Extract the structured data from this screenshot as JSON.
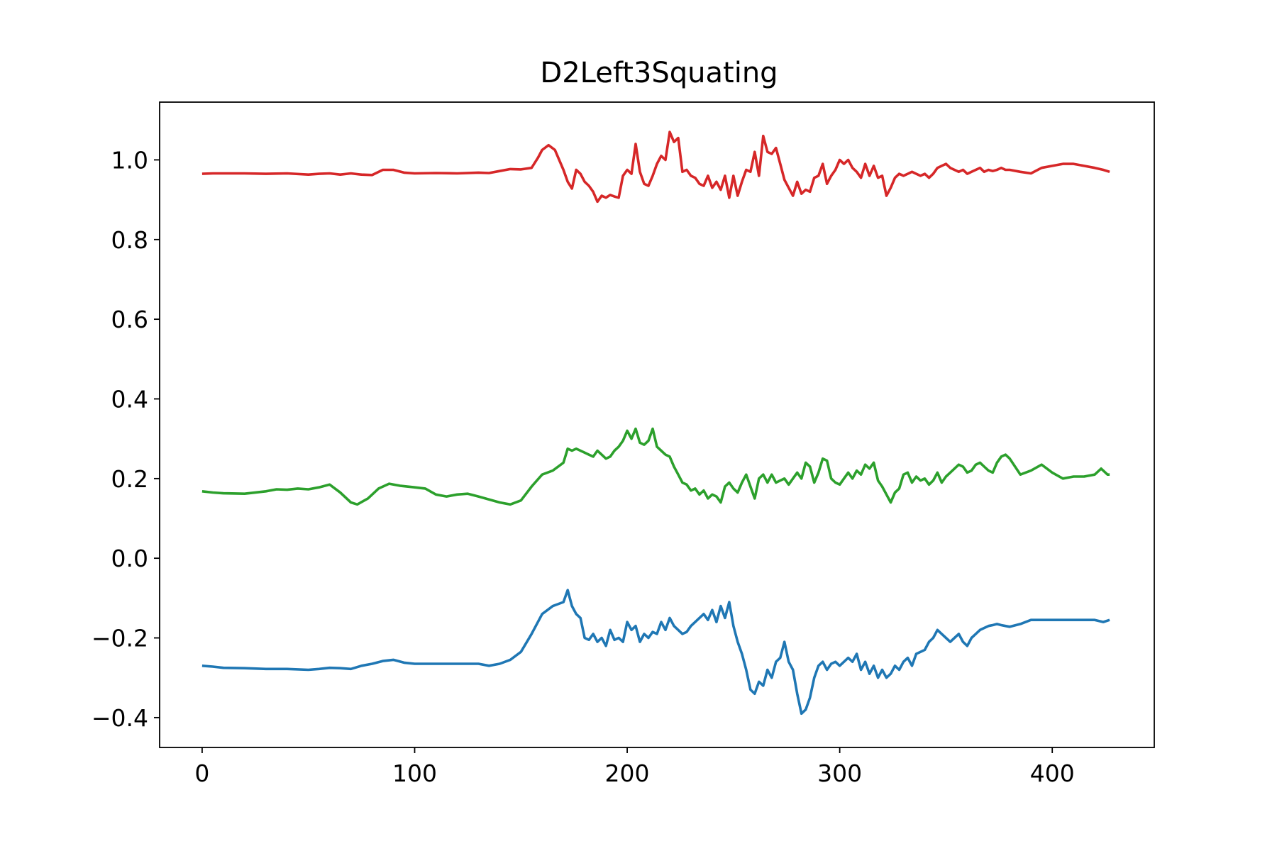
{
  "chart_data": {
    "type": "line",
    "title": "D2Left3Squating",
    "xlabel": "",
    "ylabel": "",
    "xlim": [
      -20,
      448
    ],
    "ylim": [
      -0.475,
      1.145
    ],
    "xticks": [
      0,
      100,
      200,
      300,
      400
    ],
    "xtick_labels": [
      "0",
      "100",
      "200",
      "300",
      "400"
    ],
    "yticks": [
      -0.4,
      -0.2,
      0.0,
      0.2,
      0.4,
      0.6,
      0.8,
      1.0
    ],
    "ytick_labels": [
      "−0.4",
      "−0.2",
      "0.0",
      "0.2",
      "0.4",
      "0.6",
      "0.8",
      "1.0"
    ],
    "grid": false,
    "legend": "none",
    "series": [
      {
        "color": "#d62728",
        "x": [
          0,
          5,
          10,
          20,
          30,
          40,
          50,
          55,
          60,
          65,
          70,
          75,
          80,
          85,
          90,
          95,
          100,
          110,
          120,
          130,
          135,
          140,
          145,
          150,
          155,
          158,
          160,
          163,
          166,
          170,
          172,
          174,
          176,
          178,
          180,
          182,
          184,
          186,
          188,
          190,
          192,
          194,
          196,
          198,
          200,
          202,
          204,
          206,
          208,
          210,
          212,
          214,
          216,
          218,
          220,
          222,
          224,
          226,
          228,
          230,
          232,
          234,
          236,
          238,
          240,
          242,
          244,
          246,
          248,
          250,
          252,
          254,
          256,
          258,
          260,
          262,
          264,
          266,
          268,
          270,
          272,
          274,
          276,
          278,
          280,
          282,
          284,
          286,
          288,
          290,
          292,
          294,
          296,
          298,
          300,
          302,
          304,
          306,
          308,
          310,
          312,
          314,
          316,
          318,
          320,
          322,
          324,
          326,
          328,
          330,
          332,
          334,
          336,
          338,
          340,
          342,
          344,
          346,
          348,
          350,
          352,
          354,
          356,
          358,
          360,
          362,
          364,
          366,
          368,
          370,
          372,
          374,
          376,
          378,
          380,
          385,
          390,
          395,
          400,
          405,
          410,
          415,
          420,
          424,
          427
        ],
        "y": [
          0.965,
          0.966,
          0.966,
          0.966,
          0.965,
          0.966,
          0.963,
          0.965,
          0.966,
          0.963,
          0.966,
          0.963,
          0.962,
          0.975,
          0.975,
          0.968,
          0.966,
          0.967,
          0.966,
          0.968,
          0.967,
          0.972,
          0.977,
          0.976,
          0.98,
          1.005,
          1.025,
          1.037,
          1.025,
          0.975,
          0.945,
          0.928,
          0.975,
          0.965,
          0.945,
          0.935,
          0.92,
          0.895,
          0.91,
          0.905,
          0.912,
          0.908,
          0.905,
          0.96,
          0.975,
          0.965,
          1.04,
          0.97,
          0.94,
          0.935,
          0.96,
          0.99,
          1.01,
          1.0,
          1.07,
          1.045,
          1.055,
          0.97,
          0.975,
          0.96,
          0.955,
          0.94,
          0.935,
          0.96,
          0.93,
          0.945,
          0.925,
          0.96,
          0.905,
          0.96,
          0.91,
          0.945,
          0.975,
          0.97,
          1.02,
          0.96,
          1.06,
          1.02,
          1.015,
          1.03,
          0.99,
          0.95,
          0.93,
          0.91,
          0.945,
          0.915,
          0.925,
          0.92,
          0.955,
          0.96,
          0.99,
          0.94,
          0.96,
          0.975,
          1.0,
          0.99,
          1.0,
          0.98,
          0.97,
          0.955,
          0.99,
          0.96,
          0.985,
          0.955,
          0.96,
          0.91,
          0.93,
          0.955,
          0.965,
          0.96,
          0.965,
          0.97,
          0.965,
          0.96,
          0.965,
          0.955,
          0.965,
          0.98,
          0.985,
          0.99,
          0.98,
          0.975,
          0.97,
          0.975,
          0.965,
          0.97,
          0.975,
          0.98,
          0.97,
          0.975,
          0.972,
          0.975,
          0.98,
          0.975,
          0.975,
          0.97,
          0.966,
          0.98,
          0.985,
          0.99,
          0.99,
          0.985,
          0.98,
          0.975,
          0.97
        ]
      },
      {
        "color": "#2ca02c",
        "x": [
          0,
          5,
          10,
          20,
          30,
          35,
          40,
          45,
          50,
          55,
          60,
          65,
          70,
          73,
          78,
          83,
          88,
          93,
          100,
          105,
          110,
          115,
          120,
          125,
          130,
          140,
          145,
          150,
          155,
          160,
          165,
          170,
          172,
          174,
          176,
          178,
          180,
          182,
          184,
          186,
          188,
          190,
          192,
          194,
          196,
          198,
          200,
          202,
          204,
          206,
          208,
          210,
          212,
          214,
          216,
          218,
          220,
          222,
          224,
          226,
          228,
          230,
          232,
          234,
          236,
          238,
          240,
          242,
          244,
          246,
          248,
          250,
          252,
          254,
          256,
          258,
          260,
          262,
          264,
          266,
          268,
          270,
          272,
          274,
          276,
          278,
          280,
          282,
          284,
          286,
          288,
          290,
          292,
          294,
          296,
          298,
          300,
          302,
          304,
          306,
          308,
          310,
          312,
          314,
          316,
          318,
          320,
          322,
          324,
          326,
          328,
          330,
          332,
          334,
          336,
          338,
          340,
          342,
          344,
          346,
          348,
          350,
          352,
          354,
          356,
          358,
          360,
          362,
          364,
          366,
          368,
          370,
          372,
          374,
          376,
          378,
          380,
          385,
          390,
          395,
          400,
          405,
          410,
          415,
          420,
          423,
          426,
          427
        ],
        "y": [
          0.168,
          0.165,
          0.163,
          0.162,
          0.168,
          0.173,
          0.172,
          0.175,
          0.173,
          0.178,
          0.185,
          0.165,
          0.14,
          0.135,
          0.15,
          0.175,
          0.187,
          0.182,
          0.178,
          0.175,
          0.16,
          0.155,
          0.16,
          0.162,
          0.155,
          0.14,
          0.135,
          0.145,
          0.18,
          0.21,
          0.22,
          0.24,
          0.275,
          0.27,
          0.275,
          0.27,
          0.265,
          0.26,
          0.255,
          0.27,
          0.26,
          0.25,
          0.255,
          0.27,
          0.28,
          0.295,
          0.32,
          0.3,
          0.325,
          0.29,
          0.285,
          0.295,
          0.325,
          0.28,
          0.27,
          0.26,
          0.255,
          0.23,
          0.21,
          0.19,
          0.185,
          0.17,
          0.175,
          0.16,
          0.17,
          0.15,
          0.16,
          0.155,
          0.14,
          0.18,
          0.19,
          0.175,
          0.165,
          0.19,
          0.21,
          0.18,
          0.15,
          0.2,
          0.21,
          0.19,
          0.21,
          0.19,
          0.195,
          0.2,
          0.185,
          0.2,
          0.215,
          0.2,
          0.24,
          0.23,
          0.19,
          0.215,
          0.25,
          0.245,
          0.2,
          0.19,
          0.185,
          0.2,
          0.215,
          0.2,
          0.22,
          0.21,
          0.235,
          0.225,
          0.24,
          0.195,
          0.18,
          0.16,
          0.14,
          0.165,
          0.175,
          0.21,
          0.215,
          0.19,
          0.205,
          0.195,
          0.2,
          0.185,
          0.195,
          0.215,
          0.19,
          0.205,
          0.215,
          0.225,
          0.235,
          0.23,
          0.215,
          0.22,
          0.235,
          0.24,
          0.23,
          0.22,
          0.215,
          0.24,
          0.255,
          0.26,
          0.25,
          0.21,
          0.22,
          0.235,
          0.215,
          0.2,
          0.205,
          0.205,
          0.21,
          0.225,
          0.21,
          0.21
        ]
      },
      {
        "color": "#1f77b4",
        "x": [
          0,
          5,
          10,
          20,
          30,
          40,
          50,
          55,
          60,
          65,
          70,
          75,
          80,
          85,
          90,
          95,
          100,
          110,
          120,
          130,
          135,
          140,
          145,
          150,
          155,
          160,
          165,
          170,
          172,
          174,
          176,
          178,
          180,
          182,
          184,
          186,
          188,
          190,
          192,
          194,
          196,
          198,
          200,
          202,
          204,
          206,
          208,
          210,
          212,
          214,
          216,
          218,
          220,
          222,
          224,
          226,
          228,
          230,
          232,
          234,
          236,
          238,
          240,
          242,
          244,
          246,
          248,
          250,
          252,
          254,
          256,
          258,
          260,
          262,
          264,
          266,
          268,
          270,
          272,
          274,
          276,
          278,
          280,
          282,
          284,
          286,
          288,
          290,
          292,
          294,
          296,
          298,
          300,
          302,
          304,
          306,
          308,
          310,
          312,
          314,
          316,
          318,
          320,
          322,
          324,
          326,
          328,
          330,
          332,
          334,
          336,
          338,
          340,
          342,
          344,
          346,
          348,
          350,
          352,
          354,
          356,
          358,
          360,
          362,
          364,
          366,
          368,
          370,
          372,
          374,
          376,
          378,
          380,
          385,
          390,
          395,
          400,
          405,
          410,
          415,
          420,
          424,
          427
        ],
        "y": [
          -0.27,
          -0.272,
          -0.275,
          -0.276,
          -0.278,
          -0.278,
          -0.28,
          -0.278,
          -0.275,
          -0.276,
          -0.278,
          -0.27,
          -0.265,
          -0.258,
          -0.255,
          -0.262,
          -0.265,
          -0.265,
          -0.265,
          -0.265,
          -0.27,
          -0.265,
          -0.255,
          -0.235,
          -0.19,
          -0.14,
          -0.12,
          -0.11,
          -0.08,
          -0.12,
          -0.14,
          -0.15,
          -0.2,
          -0.205,
          -0.19,
          -0.21,
          -0.2,
          -0.22,
          -0.18,
          -0.205,
          -0.2,
          -0.21,
          -0.16,
          -0.18,
          -0.17,
          -0.21,
          -0.19,
          -0.2,
          -0.185,
          -0.19,
          -0.16,
          -0.18,
          -0.15,
          -0.17,
          -0.18,
          -0.19,
          -0.185,
          -0.17,
          -0.16,
          -0.15,
          -0.14,
          -0.155,
          -0.13,
          -0.16,
          -0.12,
          -0.15,
          -0.11,
          -0.17,
          -0.21,
          -0.24,
          -0.28,
          -0.33,
          -0.34,
          -0.31,
          -0.32,
          -0.28,
          -0.3,
          -0.26,
          -0.25,
          -0.21,
          -0.26,
          -0.28,
          -0.34,
          -0.39,
          -0.38,
          -0.35,
          -0.3,
          -0.27,
          -0.26,
          -0.28,
          -0.265,
          -0.26,
          -0.27,
          -0.26,
          -0.25,
          -0.26,
          -0.24,
          -0.28,
          -0.26,
          -0.29,
          -0.27,
          -0.3,
          -0.28,
          -0.3,
          -0.29,
          -0.27,
          -0.28,
          -0.26,
          -0.25,
          -0.27,
          -0.24,
          -0.235,
          -0.23,
          -0.21,
          -0.2,
          -0.18,
          -0.19,
          -0.2,
          -0.21,
          -0.2,
          -0.19,
          -0.21,
          -0.22,
          -0.2,
          -0.19,
          -0.18,
          -0.175,
          -0.17,
          -0.168,
          -0.165,
          -0.168,
          -0.17,
          -0.172,
          -0.165,
          -0.155,
          -0.155,
          -0.155,
          -0.155,
          -0.155,
          -0.155,
          -0.155,
          -0.16,
          -0.155
        ]
      }
    ]
  }
}
